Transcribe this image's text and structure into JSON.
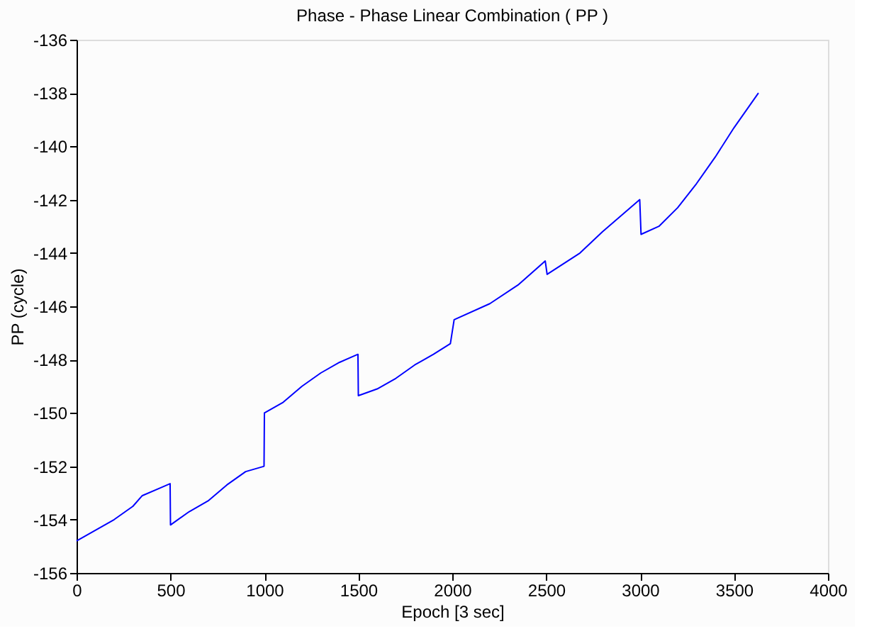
{
  "chart_data": {
    "type": "line",
    "title": "Phase - Phase Linear Combination ( PP )",
    "xlabel": "Epoch [3 sec]",
    "ylabel": "PP (cycle)",
    "xlim": [
      0,
      4000
    ],
    "xticks": [
      0,
      500,
      1000,
      1500,
      2000,
      2500,
      3000,
      3500,
      4000
    ],
    "ylim": [
      -156,
      -136
    ],
    "yticks": [
      -156,
      -154,
      -152,
      -150,
      -148,
      -146,
      -144,
      -142,
      -140,
      -138,
      -136
    ],
    "grid": false,
    "legend": false,
    "marker": "none",
    "line_style": "solid",
    "series": [
      {
        "color": "#0000ff",
        "x": [
          0,
          100,
          200,
          300,
          350,
          450,
          498,
          500,
          600,
          700,
          800,
          900,
          998,
          1000,
          1100,
          1200,
          1300,
          1400,
          1498,
          1500,
          1600,
          1700,
          1800,
          1900,
          1990,
          2010,
          2200,
          2350,
          2495,
          2505,
          2680,
          2800,
          2998,
          3005,
          3100,
          3200,
          3300,
          3400,
          3500,
          3630
        ],
        "values": [
          -154.8,
          -154.4,
          -154.0,
          -153.5,
          -153.1,
          -152.8,
          -152.65,
          -154.2,
          -153.7,
          -153.3,
          -152.7,
          -152.2,
          -152.0,
          -150.0,
          -149.6,
          -149.0,
          -148.5,
          -148.1,
          -147.8,
          -149.35,
          -149.1,
          -148.7,
          -148.2,
          -147.8,
          -147.4,
          -146.5,
          -145.9,
          -145.2,
          -144.3,
          -144.8,
          -144.0,
          -143.2,
          -142.0,
          -143.3,
          -143.0,
          -142.3,
          -141.4,
          -140.4,
          -139.3,
          -138.0
        ]
      }
    ]
  }
}
